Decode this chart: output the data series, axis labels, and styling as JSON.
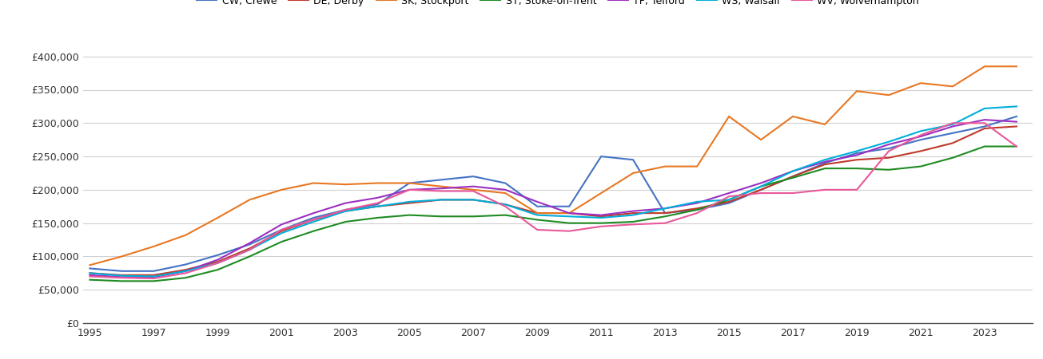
{
  "series": {
    "CW, Crewe": {
      "color": "#4472C4",
      "values": [
        82000,
        78000,
        78000,
        88000,
        102000,
        118000,
        140000,
        158000,
        170000,
        178000,
        210000,
        215000,
        220000,
        210000,
        175000,
        175000,
        250000,
        245000,
        165000,
        170000,
        180000,
        200000,
        220000,
        240000,
        255000,
        262000,
        275000,
        285000,
        295000,
        310000
      ]
    },
    "DE, Derby": {
      "color": "#C0392B",
      "values": [
        75000,
        72000,
        72000,
        80000,
        92000,
        112000,
        138000,
        155000,
        168000,
        175000,
        180000,
        185000,
        185000,
        178000,
        165000,
        165000,
        160000,
        165000,
        165000,
        172000,
        182000,
        200000,
        220000,
        238000,
        245000,
        248000,
        258000,
        270000,
        292000,
        295000
      ]
    },
    "SK, Stockport": {
      "color": "#E87722",
      "values": [
        87000,
        100000,
        115000,
        132000,
        158000,
        185000,
        200000,
        210000,
        208000,
        210000,
        210000,
        205000,
        200000,
        195000,
        165000,
        165000,
        195000,
        225000,
        235000,
        235000,
        310000,
        275000,
        310000,
        298000,
        348000,
        342000,
        360000,
        355000,
        385000,
        385000
      ]
    },
    "ST, Stoke-on-Trent": {
      "color": "#1E8B22",
      "values": [
        65000,
        63000,
        63000,
        68000,
        80000,
        100000,
        122000,
        138000,
        152000,
        158000,
        162000,
        160000,
        160000,
        162000,
        155000,
        150000,
        150000,
        152000,
        160000,
        170000,
        185000,
        205000,
        218000,
        232000,
        232000,
        230000,
        235000,
        248000,
        265000,
        265000
      ]
    },
    "TF, Telford": {
      "color": "#9B30C0",
      "values": [
        72000,
        69000,
        69000,
        78000,
        95000,
        120000,
        148000,
        165000,
        180000,
        188000,
        200000,
        202000,
        205000,
        200000,
        182000,
        165000,
        162000,
        168000,
        172000,
        180000,
        195000,
        210000,
        228000,
        242000,
        252000,
        268000,
        280000,
        295000,
        305000,
        302000
      ]
    },
    "WS, Walsall": {
      "color": "#00AEDB",
      "values": [
        75000,
        71000,
        70000,
        78000,
        90000,
        110000,
        135000,
        152000,
        168000,
        175000,
        182000,
        185000,
        185000,
        178000,
        162000,
        160000,
        158000,
        162000,
        172000,
        182000,
        185000,
        205000,
        228000,
        245000,
        258000,
        272000,
        288000,
        298000,
        322000,
        325000
      ]
    },
    "WV, Wolverhampton": {
      "color": "#E85899",
      "values": [
        70000,
        68000,
        67000,
        75000,
        90000,
        110000,
        140000,
        155000,
        170000,
        180000,
        200000,
        198000,
        198000,
        175000,
        140000,
        138000,
        145000,
        148000,
        150000,
        165000,
        190000,
        195000,
        195000,
        200000,
        200000,
        258000,
        282000,
        300000,
        300000,
        265000
      ]
    }
  },
  "years": [
    1995,
    1996,
    1997,
    1998,
    1999,
    2000,
    2001,
    2002,
    2003,
    2004,
    2005,
    2006,
    2007,
    2008,
    2009,
    2010,
    2011,
    2012,
    2013,
    2014,
    2015,
    2016,
    2017,
    2018,
    2019,
    2020,
    2021,
    2022,
    2023,
    2024
  ],
  "ylim": [
    0,
    420000
  ],
  "yticks": [
    0,
    50000,
    100000,
    150000,
    200000,
    250000,
    300000,
    350000,
    400000
  ],
  "xticks": [
    1995,
    1997,
    1999,
    2001,
    2003,
    2005,
    2007,
    2009,
    2011,
    2013,
    2015,
    2017,
    2019,
    2021,
    2023
  ],
  "background_color": "#ffffff",
  "grid_color": "#d0d0d0"
}
